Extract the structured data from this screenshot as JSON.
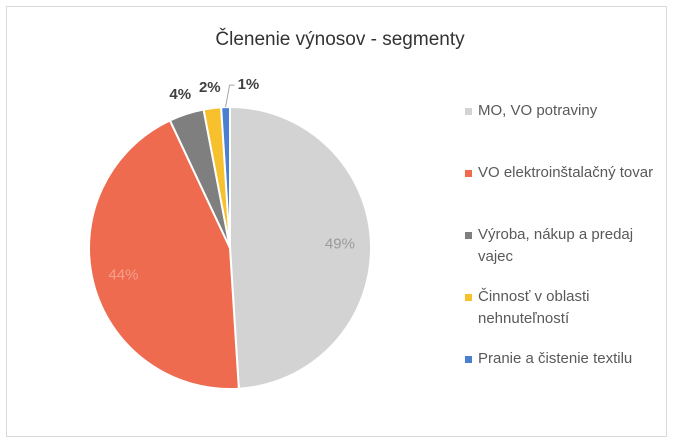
{
  "chart_data": {
    "type": "pie",
    "title": "Členenie výnosov - segmenty",
    "categories": [
      "MO, VO potraviny",
      "VO elektroinštalačný tovar",
      "Výroba, nákup a predaj vajec",
      "Činnosť v oblasti nehnuteľností",
      "Pranie a čistenie textilu"
    ],
    "values": [
      49,
      44,
      4,
      2,
      1
    ],
    "value_labels": [
      "49%",
      "44%",
      "4%",
      "2%",
      "1%"
    ],
    "colors": [
      "#d3d3d3",
      "#ee6b4f",
      "#7f7f7f",
      "#f6c12c",
      "#4a7fd2"
    ],
    "legend": "right"
  }
}
